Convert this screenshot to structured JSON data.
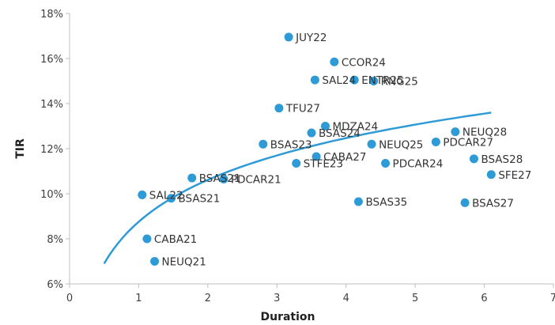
{
  "chart_data": {
    "type": "scatter",
    "xlabel": "Duration",
    "ylabel": "TIR",
    "xlim": [
      0,
      7
    ],
    "ylim": [
      6,
      18
    ],
    "x_ticks": [
      0,
      1,
      2,
      3,
      4,
      5,
      6,
      7
    ],
    "x_tick_labels": [
      "0",
      "1",
      "2",
      "3",
      "4",
      "5",
      "6",
      "7"
    ],
    "y_ticks": [
      6,
      8,
      10,
      12,
      14,
      16,
      18
    ],
    "y_tick_labels": [
      "6%",
      "8%",
      "10%",
      "12%",
      "14%",
      "16%",
      "18%"
    ],
    "grid": false,
    "legend": "none",
    "trendline": {
      "type": "logarithmic",
      "x_range": [
        0.5,
        6.1
      ],
      "y_start": 6.9,
      "y_end": 13.6
    },
    "points": [
      {
        "label": "JUY22",
        "x": 3.17,
        "y": 16.95
      },
      {
        "label": "CCOR24",
        "x": 3.83,
        "y": 15.85
      },
      {
        "label": "ENTR25",
        "x": 4.12,
        "y": 15.05
      },
      {
        "label": "SAL24",
        "x": 3.55,
        "y": 15.05
      },
      {
        "label": "RNG25",
        "x": 4.4,
        "y": 15.0
      },
      {
        "label": "TFU27",
        "x": 3.03,
        "y": 13.8
      },
      {
        "label": "MDZA24",
        "x": 3.7,
        "y": 13.0
      },
      {
        "label": "BSAS23",
        "x": 2.8,
        "y": 12.2
      },
      {
        "label": "BSAS24",
        "x": 3.5,
        "y": 12.7
      },
      {
        "label": "NEUQ28",
        "x": 5.58,
        "y": 12.75
      },
      {
        "label": "NEUQ25",
        "x": 4.37,
        "y": 12.2
      },
      {
        "label": "PDCAR27",
        "x": 5.3,
        "y": 12.3
      },
      {
        "label": "CABA27",
        "x": 3.57,
        "y": 11.65
      },
      {
        "label": "BSAS28",
        "x": 5.85,
        "y": 11.55
      },
      {
        "label": "STFE23",
        "x": 3.28,
        "y": 11.35
      },
      {
        "label": "PDCAR24",
        "x": 4.57,
        "y": 11.35
      },
      {
        "label": "SFE27",
        "x": 6.1,
        "y": 10.85
      },
      {
        "label": "BSAS21",
        "x": 1.77,
        "y": 10.7
      },
      {
        "label": "PDCAR21",
        "x": 2.23,
        "y": 10.65
      },
      {
        "label": "SAL22",
        "x": 1.05,
        "y": 9.95
      },
      {
        "label": "BSAS21",
        "x": 1.47,
        "y": 9.8
      },
      {
        "label": "BSAS35",
        "x": 4.18,
        "y": 9.65
      },
      {
        "label": "BSAS27",
        "x": 5.72,
        "y": 9.6
      },
      {
        "label": "CABA21",
        "x": 1.12,
        "y": 8.0
      },
      {
        "label": "NEUQ21",
        "x": 1.23,
        "y": 7.0
      }
    ],
    "colors": {
      "marker": "#2e9bd6",
      "trendline": "#2e9bd6",
      "axis": "#bfbfbf"
    }
  }
}
